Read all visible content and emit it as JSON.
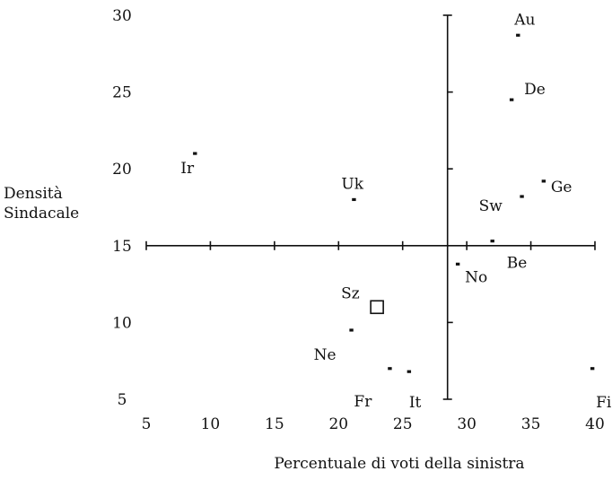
{
  "chart_data": {
    "type": "scatter",
    "title": "",
    "xlabel": "Percentuale di voti della sinistra",
    "ylabel_lines": [
      "Densità",
      "Sindacale"
    ],
    "xlim": [
      5,
      40
    ],
    "ylim": [
      5,
      30
    ],
    "x_ticks": [
      5,
      10,
      15,
      20,
      25,
      30,
      35,
      40
    ],
    "y_ticks": [
      5,
      10,
      15,
      20,
      25,
      30
    ],
    "crosshair": {
      "x": 28.5,
      "y": 15
    },
    "grid": false,
    "points": [
      {
        "label": "Au",
        "x": 34.0,
        "y": 28.7,
        "marker": "dot"
      },
      {
        "label": "De",
        "x": 33.5,
        "y": 24.5,
        "marker": "dot"
      },
      {
        "label": "Ir",
        "x": 8.8,
        "y": 21.0,
        "marker": "dot"
      },
      {
        "label": "Uk",
        "x": 21.2,
        "y": 18.0,
        "marker": "dot"
      },
      {
        "label": "Ge",
        "x": 36.0,
        "y": 19.2,
        "marker": "dot"
      },
      {
        "label": "Sw",
        "x": 34.3,
        "y": 18.2,
        "marker": "dot"
      },
      {
        "label": "Be",
        "x": 32.0,
        "y": 15.3,
        "marker": "dot"
      },
      {
        "label": "No",
        "x": 29.3,
        "y": 13.8,
        "marker": "dot"
      },
      {
        "label": "Sz",
        "x": 23.0,
        "y": 11.0,
        "marker": "square"
      },
      {
        "label": "Ne",
        "x": 21.0,
        "y": 9.5,
        "marker": "dot"
      },
      {
        "label": "Fr",
        "x": 24.0,
        "y": 7.0,
        "marker": "dot"
      },
      {
        "label": "It",
        "x": 25.5,
        "y": 6.8,
        "marker": "dot"
      },
      {
        "label": "Fi",
        "x": 39.8,
        "y": 7.0,
        "marker": "dot"
      }
    ]
  }
}
